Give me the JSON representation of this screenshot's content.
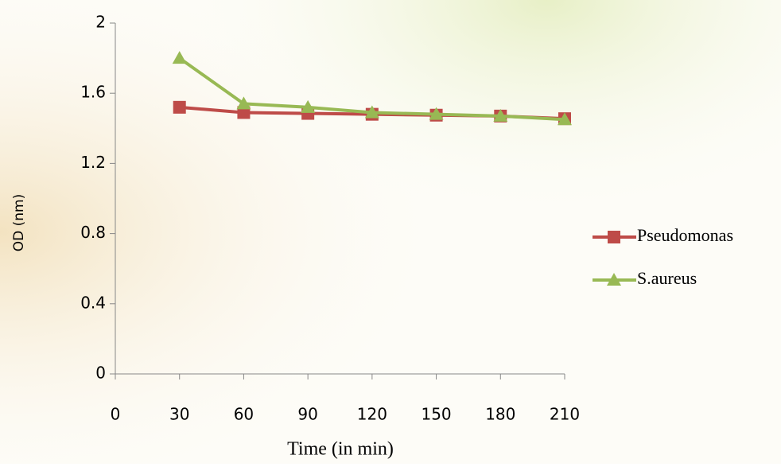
{
  "chart_data": {
    "type": "line",
    "x_label": "Time (in min)",
    "y_label": "OD (nm)",
    "x": [
      30,
      60,
      90,
      120,
      150,
      180,
      210
    ],
    "xlim": [
      0,
      210
    ],
    "xticks": [
      0,
      30,
      60,
      90,
      120,
      150,
      180,
      210
    ],
    "ylim": [
      0,
      2
    ],
    "yticks": [
      0,
      0.4,
      0.8,
      1.2,
      1.6,
      2
    ],
    "legend": "right",
    "series": [
      {
        "name": "Pseudomonas",
        "color": "#be4b48",
        "marker": "square",
        "values": [
          1.52,
          1.49,
          1.485,
          1.48,
          1.475,
          1.47,
          1.455
        ]
      },
      {
        "name": "S.aureus",
        "color": "#98b954",
        "marker": "triangle",
        "values": [
          1.8,
          1.54,
          1.52,
          1.49,
          1.48,
          1.47,
          1.45
        ]
      }
    ]
  }
}
